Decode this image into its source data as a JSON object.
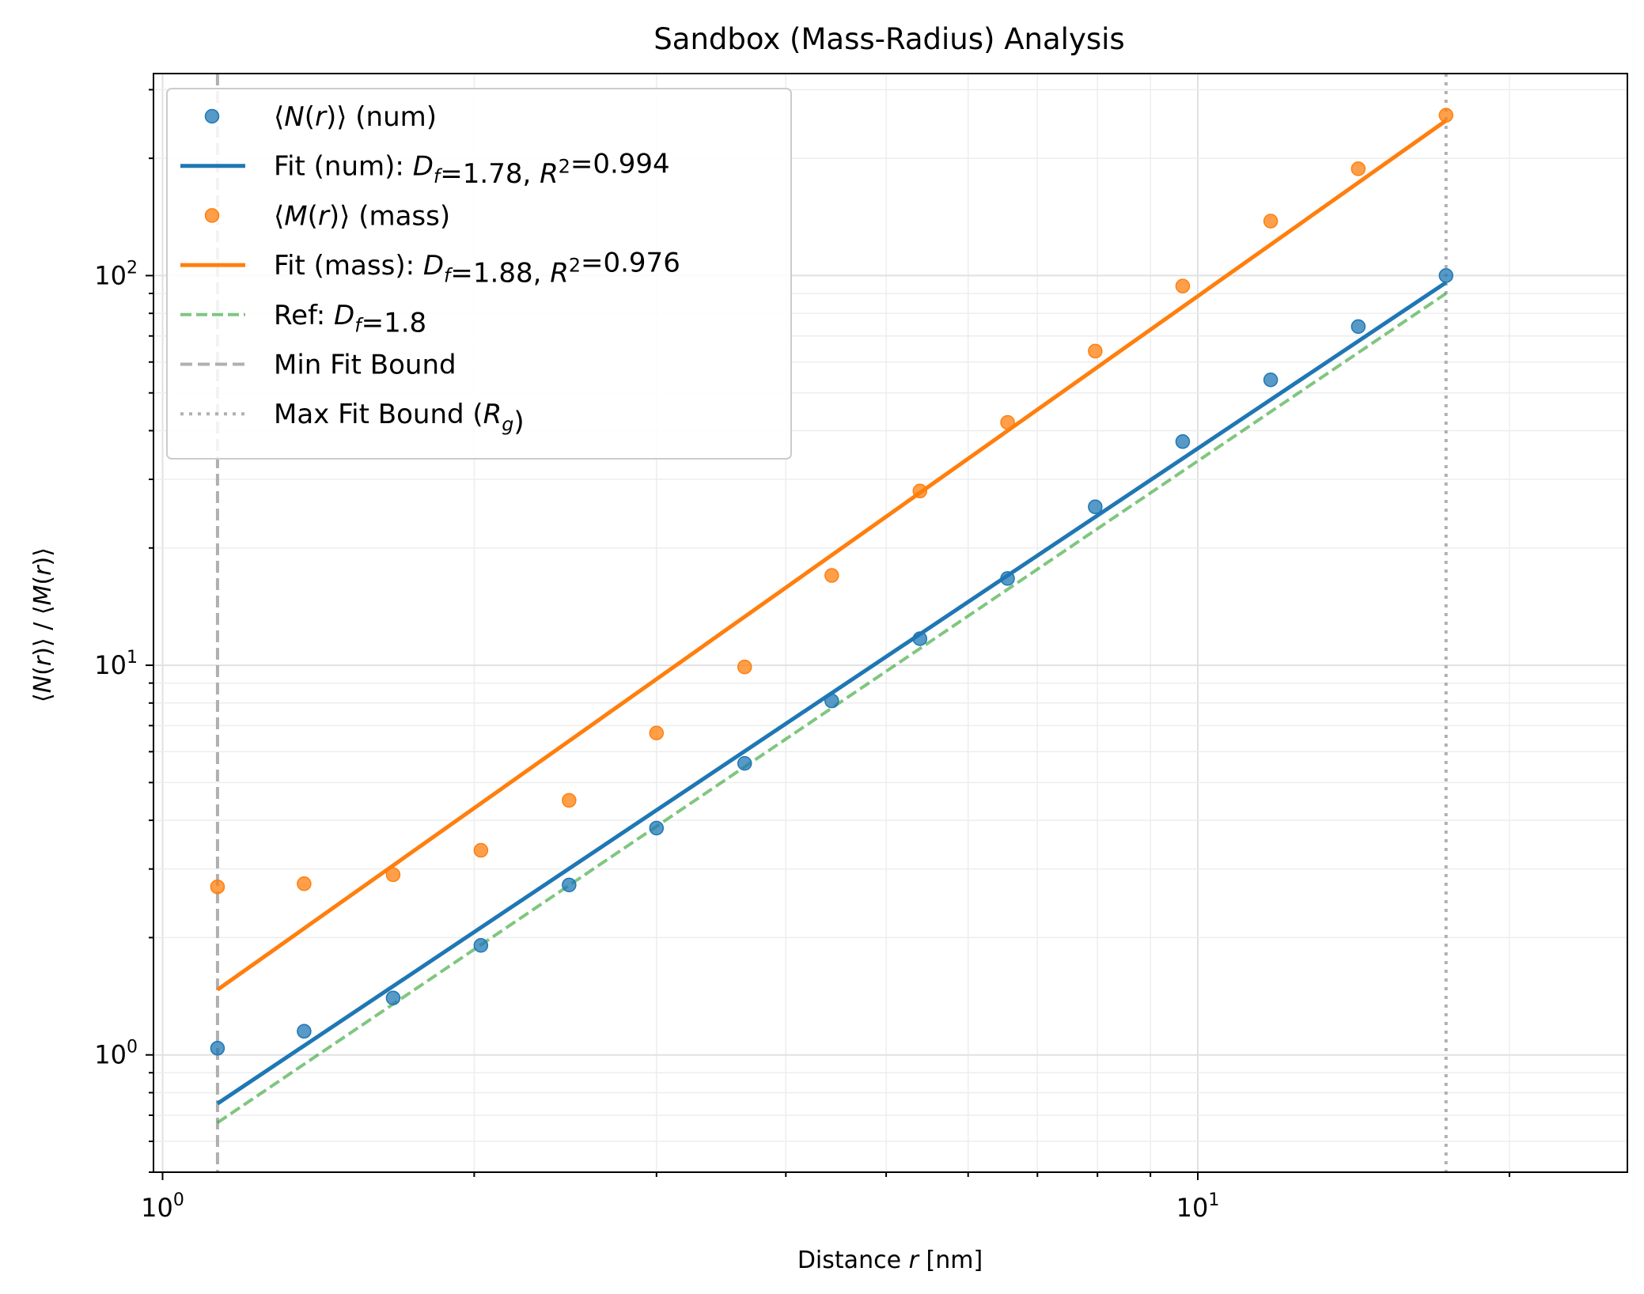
{
  "chart_data": {
    "type": "scatter",
    "title": "Sandbox (Mass-Radius) Analysis",
    "xlabel": "Distance r [nm]",
    "ylabel": "⟨N(r)⟩ / ⟨M(r)⟩",
    "x_scale": "log",
    "y_scale": "log",
    "xlim": [
      0.98,
      26
    ],
    "ylim": [
      0.5,
      330
    ],
    "x_ticks": [
      {
        "value": 1,
        "base": "10",
        "exp": "0"
      },
      {
        "value": 10,
        "base": "10",
        "exp": "1"
      }
    ],
    "y_ticks": [
      {
        "value": 1,
        "base": "10",
        "exp": "0"
      },
      {
        "value": 10,
        "base": "10",
        "exp": "1"
      },
      {
        "value": 100,
        "base": "10",
        "exp": "2"
      }
    ],
    "grid": true,
    "legend_position": "top-left",
    "legend": [
      {
        "key": "num_points",
        "marker": "circle",
        "color": "#1f77b4",
        "label": "⟨N(r)⟩ (num)"
      },
      {
        "key": "num_fit",
        "marker": "line",
        "color": "#1f77b4",
        "label": "Fit (num): D_f=1.78, R²=0.994"
      },
      {
        "key": "mass_points",
        "marker": "circle",
        "color": "#ff7f0e",
        "label": "⟨M(r)⟩ (mass)"
      },
      {
        "key": "mass_fit",
        "marker": "line",
        "color": "#ff7f0e",
        "label": "Fit (mass): D_f=1.88, R²=0.976"
      },
      {
        "key": "ref",
        "marker": "dashed",
        "color": "#2ca02c",
        "label": "Ref: D_f=1.8"
      },
      {
        "key": "min_bound",
        "marker": "dashed",
        "color": "#b0b0b0",
        "label": "Min Fit Bound"
      },
      {
        "key": "max_bound",
        "marker": "dotted",
        "color": "#b0b0b0",
        "label": "Max Fit Bound (R_g)"
      }
    ],
    "series": [
      {
        "name": "⟨N(r)⟩ (num)",
        "kind": "scatter",
        "color": "#1f77b4",
        "x": [
          1.13,
          1.37,
          1.67,
          2.03,
          2.47,
          3.0,
          3.65,
          4.43,
          5.39,
          6.55,
          7.96,
          9.67,
          11.76,
          14.29,
          17.37
        ],
        "y": [
          1.04,
          1.15,
          1.4,
          1.91,
          2.73,
          3.82,
          5.6,
          8.1,
          11.7,
          16.7,
          25.5,
          37.5,
          54.0,
          74.0,
          100.0
        ]
      },
      {
        "name": "⟨M(r)⟩ (mass)",
        "kind": "scatter",
        "color": "#ff7f0e",
        "x": [
          1.13,
          1.37,
          1.67,
          2.03,
          2.47,
          3.0,
          3.65,
          4.43,
          5.39,
          6.55,
          7.96,
          9.67,
          11.76,
          14.29,
          17.37
        ],
        "y": [
          2.7,
          2.75,
          2.9,
          3.35,
          4.5,
          6.7,
          9.9,
          17.0,
          28.0,
          42.0,
          64.0,
          94.0,
          138.0,
          188.0,
          258.0
        ]
      },
      {
        "name": "Fit (num): D_f=1.78, R²=0.994",
        "kind": "line",
        "color": "#1f77b4",
        "x": [
          1.13,
          17.37
        ],
        "y": [
          0.75,
          96.0
        ]
      },
      {
        "name": "Fit (mass): D_f=1.88, R²=0.976",
        "kind": "line",
        "color": "#ff7f0e",
        "x": [
          1.13,
          17.37
        ],
        "y": [
          1.47,
          250.0
        ]
      },
      {
        "name": "Ref: D_f=1.8",
        "kind": "dashed",
        "color": "#2ca02c",
        "x": [
          1.13,
          17.37
        ],
        "y": [
          0.67,
          90.0
        ]
      }
    ],
    "vlines": [
      {
        "name": "Min Fit Bound",
        "x": 1.13,
        "style": "dashed",
        "color": "#b0b0b0"
      },
      {
        "name": "Max Fit Bound (R_g)",
        "x": 17.37,
        "style": "dotted",
        "color": "#b0b0b0"
      }
    ]
  }
}
